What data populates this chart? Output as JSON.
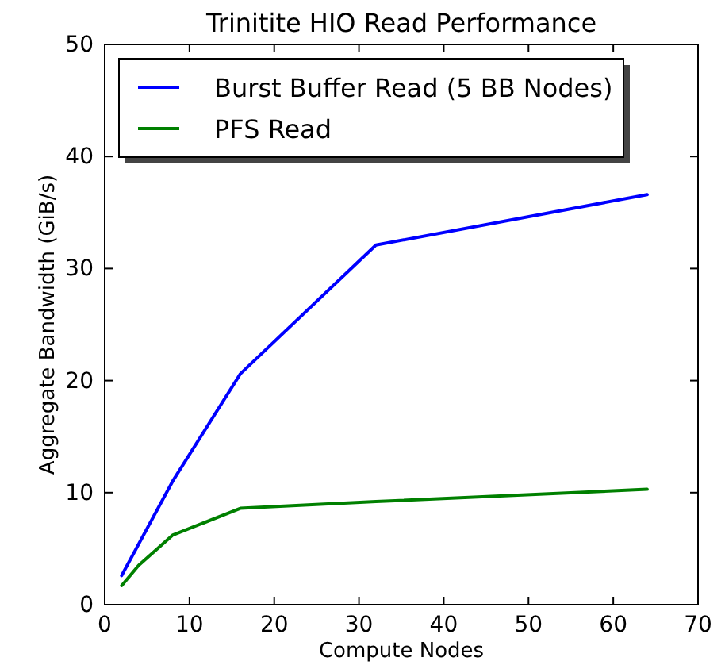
{
  "chart_data": {
    "type": "line",
    "title": "Trinitite HIO Read Performance",
    "xlabel": "Compute Nodes",
    "ylabel": "Aggregate Bandwidth (GiB/s)",
    "xlim": [
      0,
      70
    ],
    "xticks": [
      0,
      10,
      20,
      30,
      40,
      50,
      60,
      70
    ],
    "ylim": [
      0,
      50
    ],
    "yticks": [
      0,
      10,
      20,
      30,
      40,
      50
    ],
    "grid": false,
    "legend": "top left",
    "line_style": "solid",
    "series": [
      {
        "name": "Burst Buffer Read (5 BB Nodes)",
        "color": "#0000ff",
        "x": [
          2,
          8,
          16,
          32,
          64
        ],
        "values": [
          2.6,
          11,
          20.6,
          32.1,
          36.6
        ]
      },
      {
        "name": "PFS Read",
        "color": "#008000",
        "x": [
          2,
          4,
          8,
          16,
          32,
          64
        ],
        "values": [
          1.7,
          3.5,
          6.2,
          8.6,
          9.2,
          10.3
        ]
      }
    ]
  }
}
